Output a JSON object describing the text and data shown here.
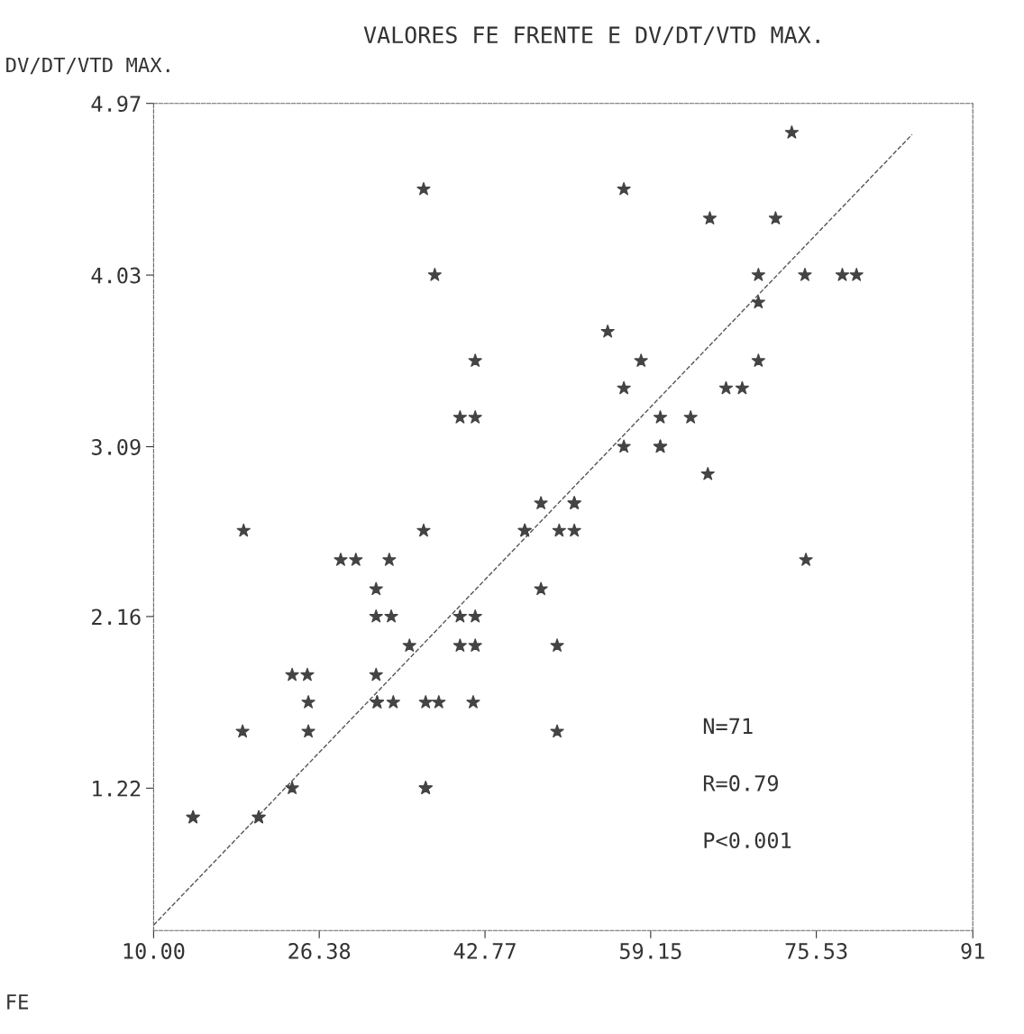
{
  "chart_data": {
    "type": "scatter",
    "title": "VALORES FE FRENTE E DV/DT/VTD MAX.",
    "ylabel": "DV/DT/VTD MAX.",
    "xlabel": "FE",
    "xlim": [
      10,
      91
    ],
    "xticks": [
      {
        "value": 10,
        "label": "10.00"
      },
      {
        "value": 26.38,
        "label": "26.38"
      },
      {
        "value": 42.77,
        "label": "42.77"
      },
      {
        "value": 59.15,
        "label": "59.15"
      },
      {
        "value": 75.53,
        "label": "75.53"
      },
      91
    ],
    "ylim": [
      0.44,
      4.97
    ],
    "yticks": [
      {
        "value": 4.97,
        "label": "4.97"
      },
      {
        "value": 4.03,
        "label": "4.03"
      },
      {
        "value": 3.09,
        "label": "3.09"
      },
      {
        "value": 2.16,
        "label": "2.16"
      },
      {
        "value": 1.22,
        "label": "1.22"
      }
    ],
    "grid": false,
    "legend": false,
    "series": [
      {
        "marker": "star",
        "color": "#444444",
        "x": [
          73.1,
          36.7,
          56.5,
          65.0,
          71.5,
          37.8,
          69.8,
          74.4,
          78.1,
          79.5,
          69.8,
          54.9,
          41.8,
          58.2,
          69.8,
          56.5,
          66.6,
          68.2,
          40.3,
          41.8,
          60.1,
          63.1,
          56.5,
          60.1,
          60.1,
          64.8,
          48.3,
          51.6,
          51.6,
          18.9,
          36.7,
          46.7,
          46.7,
          50.1,
          51.6,
          28.5,
          30.0,
          33.3,
          74.5,
          32.0,
          48.3,
          32.0,
          33.5,
          40.3,
          41.8,
          35.3,
          40.3,
          41.8,
          49.9,
          23.7,
          25.2,
          32.0,
          25.3,
          32.1,
          32.1,
          33.7,
          36.9,
          38.2,
          41.6,
          18.8,
          25.3,
          49.9,
          23.7,
          36.9,
          36.9,
          13.9,
          13.9,
          20.4,
          20.4
        ],
        "values": [
          4.81,
          4.5,
          4.5,
          4.34,
          4.34,
          4.03,
          4.03,
          4.03,
          4.03,
          4.03,
          3.88,
          3.72,
          3.56,
          3.56,
          3.56,
          3.41,
          3.41,
          3.41,
          3.25,
          3.25,
          3.25,
          3.25,
          3.09,
          3.09,
          3.09,
          2.94,
          2.78,
          2.78,
          2.78,
          2.63,
          2.63,
          2.63,
          2.63,
          2.63,
          2.63,
          2.47,
          2.47,
          2.47,
          2.47,
          2.31,
          2.31,
          2.16,
          2.16,
          2.16,
          2.16,
          2.0,
          2.0,
          2.0,
          2.0,
          1.84,
          1.84,
          1.84,
          1.69,
          1.69,
          1.69,
          1.69,
          1.69,
          1.69,
          1.69,
          1.53,
          1.53,
          1.53,
          1.22,
          1.22,
          1.22,
          1.06,
          1.06,
          1.06,
          1.06
        ]
      },
      {
        "type": "line",
        "color": "#555555",
        "line_style": "dashed",
        "x": [
          10,
          85
        ],
        "values": [
          0.47,
          4.8
        ]
      }
    ],
    "annotations": [
      "N=71",
      "R=0.79",
      "P<0.001"
    ]
  }
}
